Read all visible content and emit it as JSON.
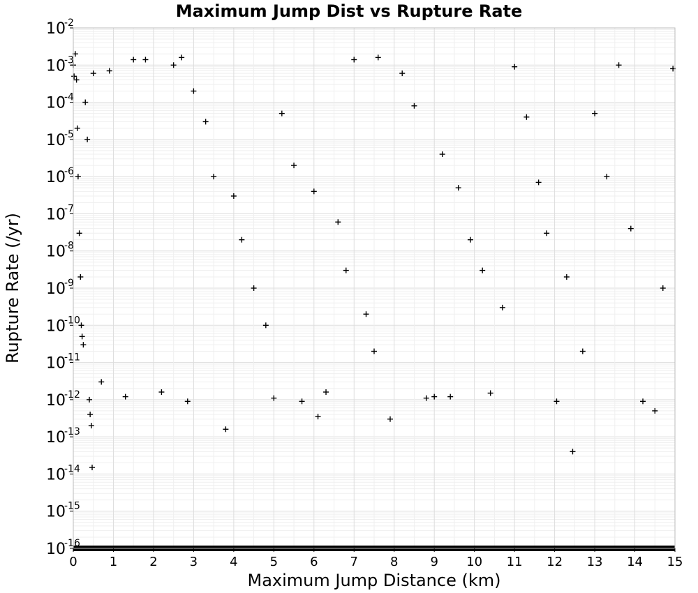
{
  "chart_data": {
    "type": "scatter",
    "title": "Maximum Jump Dist vs Rupture Rate",
    "xlabel": "Maximum Jump Distance (km)",
    "ylabel": "Rupture Rate (/yr)",
    "xlim": [
      0,
      15
    ],
    "ylim": [
      1e-16,
      0.01
    ],
    "yscale": "log",
    "grid": true,
    "marker": "+",
    "marker_color": "#000000",
    "x_ticks": [
      "0",
      "1",
      "2",
      "3",
      "4",
      "5",
      "6",
      "7",
      "8",
      "9",
      "10",
      "11",
      "12",
      "13",
      "14",
      "15"
    ],
    "y_ticks": [
      {
        "base": "10",
        "exp": "-2"
      },
      {
        "base": "10",
        "exp": "-3"
      },
      {
        "base": "10",
        "exp": "-4"
      },
      {
        "base": "10",
        "exp": "-5"
      },
      {
        "base": "10",
        "exp": "-6"
      },
      {
        "base": "10",
        "exp": "-7"
      },
      {
        "base": "10",
        "exp": "-8"
      },
      {
        "base": "10",
        "exp": "-9"
      },
      {
        "base": "10",
        "exp": "-10"
      },
      {
        "base": "10",
        "exp": "-11"
      },
      {
        "base": "10",
        "exp": "-12"
      },
      {
        "base": "10",
        "exp": "-13"
      },
      {
        "base": "10",
        "exp": "-14"
      },
      {
        "base": "10",
        "exp": "-15"
      },
      {
        "base": "10",
        "exp": "-16"
      }
    ],
    "points": [
      [
        0.0,
        0.001
      ],
      [
        0.02,
        0.0005
      ],
      [
        0.05,
        0.002
      ],
      [
        0.08,
        0.0004
      ],
      [
        0.1,
        2e-05
      ],
      [
        0.12,
        1e-06
      ],
      [
        0.15,
        3e-08
      ],
      [
        0.18,
        2e-09
      ],
      [
        0.2,
        1e-10
      ],
      [
        0.22,
        5e-11
      ],
      [
        0.25,
        3e-11
      ],
      [
        0.3,
        0.0001
      ],
      [
        0.35,
        1e-05
      ],
      [
        0.4,
        1e-12
      ],
      [
        0.42,
        4e-13
      ],
      [
        0.45,
        2e-13
      ],
      [
        0.47,
        1.5e-14
      ],
      [
        0.5,
        0.0006
      ],
      [
        0.7,
        3e-12
      ],
      [
        0.9,
        0.0007
      ],
      [
        1.3,
        1.2e-12
      ],
      [
        1.5,
        0.0014
      ],
      [
        1.8,
        0.0014
      ],
      [
        2.2,
        1.6e-12
      ],
      [
        2.5,
        0.001
      ],
      [
        2.7,
        0.0016
      ],
      [
        2.85,
        9e-13
      ],
      [
        3.0,
        0.0002
      ],
      [
        3.3,
        3e-05
      ],
      [
        3.5,
        1e-06
      ],
      [
        3.8,
        1.6e-13
      ],
      [
        4.0,
        3e-07
      ],
      [
        4.2,
        2e-08
      ],
      [
        4.5,
        1e-09
      ],
      [
        4.8,
        1e-10
      ],
      [
        5.0,
        1.1e-12
      ],
      [
        5.2,
        5e-05
      ],
      [
        5.5,
        2e-06
      ],
      [
        5.7,
        9e-13
      ],
      [
        6.0,
        4e-07
      ],
      [
        6.1,
        3.5e-13
      ],
      [
        6.3,
        1.6e-12
      ],
      [
        6.6,
        6e-08
      ],
      [
        6.8,
        3e-09
      ],
      [
        7.0,
        0.0014
      ],
      [
        7.3,
        2e-10
      ],
      [
        7.5,
        2e-11
      ],
      [
        7.6,
        0.0016
      ],
      [
        7.9,
        3e-13
      ],
      [
        8.2,
        0.0006
      ],
      [
        8.5,
        8e-05
      ],
      [
        8.8,
        1.1e-12
      ],
      [
        9.0,
        1.2e-12
      ],
      [
        9.2,
        4e-06
      ],
      [
        9.4,
        1.2e-12
      ],
      [
        9.6,
        5e-07
      ],
      [
        9.9,
        2e-08
      ],
      [
        10.2,
        3e-09
      ],
      [
        10.4,
        1.5e-12
      ],
      [
        10.7,
        3e-10
      ],
      [
        11.0,
        0.0009
      ],
      [
        11.3,
        4e-05
      ],
      [
        11.6,
        7e-07
      ],
      [
        11.8,
        3e-08
      ],
      [
        12.05,
        9e-13
      ],
      [
        12.3,
        2e-09
      ],
      [
        12.45,
        4e-14
      ],
      [
        12.7,
        2e-11
      ],
      [
        13.0,
        5e-05
      ],
      [
        13.3,
        1e-06
      ],
      [
        13.6,
        0.001
      ],
      [
        13.9,
        4e-08
      ],
      [
        14.2,
        9e-13
      ],
      [
        14.5,
        5e-13
      ],
      [
        14.7,
        1e-09
      ],
      [
        14.95,
        0.0008
      ]
    ],
    "floor_value": 1e-16
  }
}
